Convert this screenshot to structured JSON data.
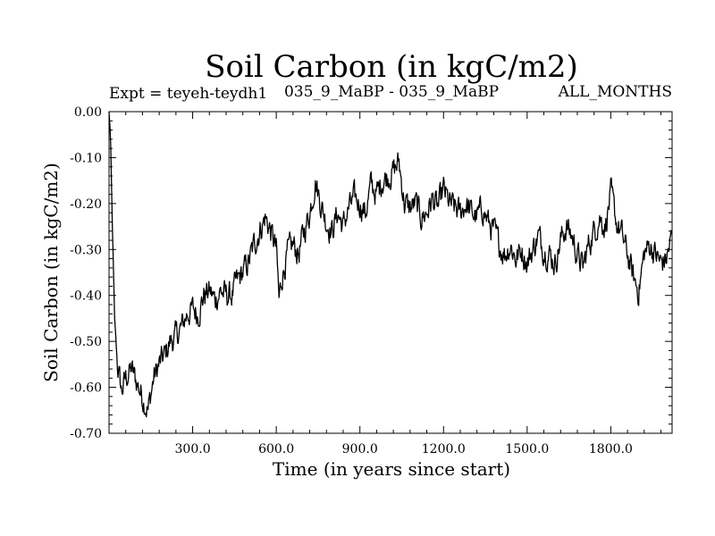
{
  "chart_data": {
    "type": "line",
    "title": "Soil Carbon (in kgC/m2)",
    "subtitle_left": "Expt = teyeh-teydh1",
    "subtitle_center": "035_9_MaBP - 035_9_MaBP",
    "subtitle_right": "ALL_MONTHS",
    "xlabel": "Time (in years since start)",
    "ylabel": "Soil Carbon (in kgC/m2)",
    "xlim": [
      0,
      2020
    ],
    "ylim": [
      -0.7,
      0.0
    ],
    "x_ticks": [
      300,
      600,
      900,
      1200,
      1500,
      1800
    ],
    "x_tick_labels": [
      "300.0",
      "600.0",
      "900.0",
      "1200.0",
      "1500.0",
      "1800.0"
    ],
    "y_ticks": [
      0.0,
      -0.1,
      -0.2,
      -0.3,
      -0.4,
      -0.5,
      -0.6,
      -0.7
    ],
    "y_tick_labels": [
      "0.00",
      "-0.10",
      "-0.20",
      "-0.30",
      "-0.40",
      "-0.50",
      "-0.60",
      "-0.70"
    ],
    "grid": false,
    "noise_amplitude": 0.03,
    "series": [
      {
        "name": "Soil Carbon",
        "color": "#000000",
        "points": [
          [
            0,
            0.0
          ],
          [
            5,
            -0.05
          ],
          [
            12,
            -0.25
          ],
          [
            20,
            -0.45
          ],
          [
            30,
            -0.55
          ],
          [
            45,
            -0.61
          ],
          [
            60,
            -0.58
          ],
          [
            80,
            -0.56
          ],
          [
            100,
            -0.59
          ],
          [
            120,
            -0.62
          ],
          [
            140,
            -0.65
          ],
          [
            160,
            -0.58
          ],
          [
            180,
            -0.55
          ],
          [
            200,
            -0.53
          ],
          [
            220,
            -0.5
          ],
          [
            240,
            -0.49
          ],
          [
            260,
            -0.47
          ],
          [
            280,
            -0.44
          ],
          [
            300,
            -0.43
          ],
          [
            320,
            -0.44
          ],
          [
            340,
            -0.4
          ],
          [
            360,
            -0.39
          ],
          [
            380,
            -0.41
          ],
          [
            400,
            -0.39
          ],
          [
            420,
            -0.4
          ],
          [
            440,
            -0.4
          ],
          [
            460,
            -0.37
          ],
          [
            480,
            -0.35
          ],
          [
            500,
            -0.33
          ],
          [
            520,
            -0.29
          ],
          [
            540,
            -0.26
          ],
          [
            560,
            -0.23
          ],
          [
            580,
            -0.26
          ],
          [
            600,
            -0.3
          ],
          [
            610,
            -0.41
          ],
          [
            620,
            -0.36
          ],
          [
            640,
            -0.31
          ],
          [
            660,
            -0.29
          ],
          [
            680,
            -0.31
          ],
          [
            700,
            -0.26
          ],
          [
            720,
            -0.22
          ],
          [
            740,
            -0.15
          ],
          [
            760,
            -0.2
          ],
          [
            780,
            -0.24
          ],
          [
            800,
            -0.26
          ],
          [
            820,
            -0.22
          ],
          [
            840,
            -0.25
          ],
          [
            860,
            -0.21
          ],
          [
            880,
            -0.19
          ],
          [
            900,
            -0.2
          ],
          [
            920,
            -0.22
          ],
          [
            940,
            -0.16
          ],
          [
            960,
            -0.18
          ],
          [
            980,
            -0.15
          ],
          [
            1000,
            -0.14
          ],
          [
            1020,
            -0.13
          ],
          [
            1040,
            -0.11
          ],
          [
            1060,
            -0.2
          ],
          [
            1080,
            -0.21
          ],
          [
            1100,
            -0.2
          ],
          [
            1120,
            -0.23
          ],
          [
            1140,
            -0.22
          ],
          [
            1160,
            -0.19
          ],
          [
            1180,
            -0.21
          ],
          [
            1200,
            -0.17
          ],
          [
            1220,
            -0.2
          ],
          [
            1240,
            -0.21
          ],
          [
            1260,
            -0.22
          ],
          [
            1280,
            -0.2
          ],
          [
            1300,
            -0.22
          ],
          [
            1320,
            -0.23
          ],
          [
            1340,
            -0.21
          ],
          [
            1360,
            -0.24
          ],
          [
            1380,
            -0.26
          ],
          [
            1400,
            -0.29
          ],
          [
            1420,
            -0.31
          ],
          [
            1440,
            -0.29
          ],
          [
            1460,
            -0.32
          ],
          [
            1480,
            -0.3
          ],
          [
            1500,
            -0.33
          ],
          [
            1520,
            -0.3
          ],
          [
            1540,
            -0.27
          ],
          [
            1560,
            -0.3
          ],
          [
            1580,
            -0.31
          ],
          [
            1600,
            -0.33
          ],
          [
            1620,
            -0.28
          ],
          [
            1640,
            -0.25
          ],
          [
            1660,
            -0.27
          ],
          [
            1680,
            -0.31
          ],
          [
            1700,
            -0.34
          ],
          [
            1720,
            -0.29
          ],
          [
            1740,
            -0.26
          ],
          [
            1760,
            -0.23
          ],
          [
            1780,
            -0.25
          ],
          [
            1800,
            -0.18
          ],
          [
            1820,
            -0.24
          ],
          [
            1840,
            -0.27
          ],
          [
            1860,
            -0.31
          ],
          [
            1880,
            -0.36
          ],
          [
            1900,
            -0.39
          ],
          [
            1920,
            -0.31
          ],
          [
            1940,
            -0.29
          ],
          [
            1960,
            -0.31
          ],
          [
            1980,
            -0.33
          ],
          [
            2000,
            -0.32
          ],
          [
            2020,
            -0.27
          ]
        ]
      }
    ]
  }
}
